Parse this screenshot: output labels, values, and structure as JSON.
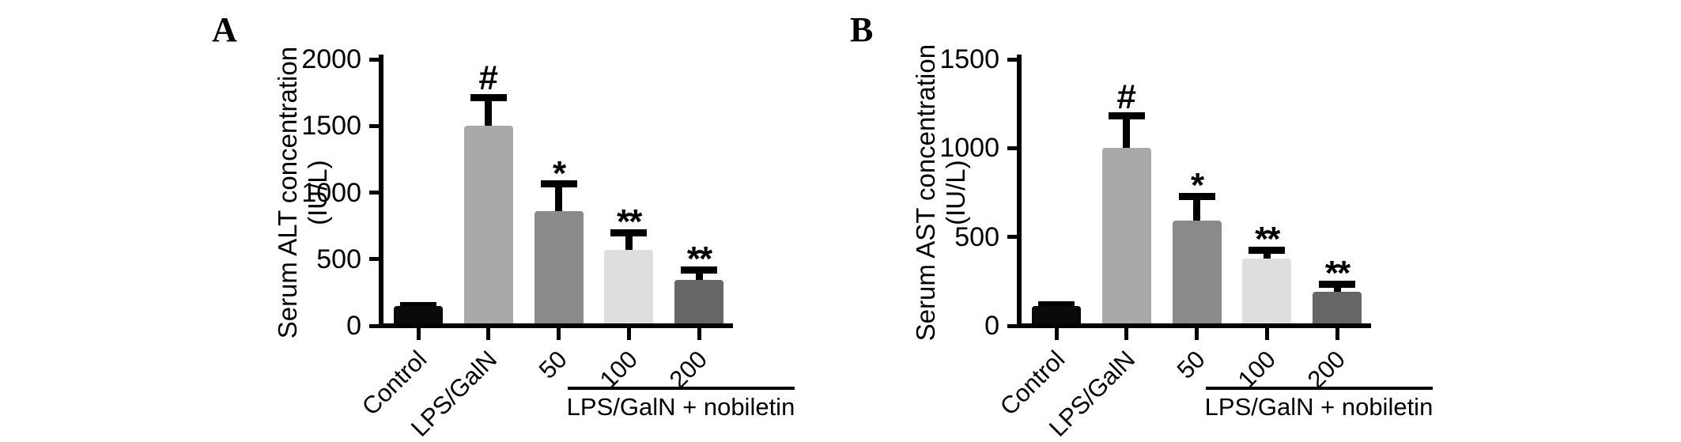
{
  "figure": {
    "background": "#ffffff",
    "axis_color": "#000000",
    "panel_count": 2
  },
  "chart_data": [
    {
      "type": "bar",
      "panel_label": "A",
      "title": "",
      "ylabel": "Serum ALT concentration (IU/L)",
      "ylabel_line1": "Serum ALT concentration",
      "ylabel_line2": "(IU/L)",
      "xlabel": "",
      "categories": [
        "Control",
        "LPS/GalN",
        "50",
        "100",
        "200"
      ],
      "values": [
        150,
        1500,
        860,
        570,
        345
      ],
      "errors": [
        30,
        240,
        230,
        155,
        100
      ],
      "significance": [
        "",
        "#",
        "*",
        "**",
        "**"
      ],
      "bar_colors": [
        "#0a0a0a",
        "#a9a9ab",
        "#8a8a8c",
        "#dedede",
        "#666668"
      ],
      "ylim": [
        0,
        2000
      ],
      "yticks": [
        0,
        500,
        1000,
        1500,
        2000
      ],
      "grid": false,
      "legend_position": "none",
      "group_annotation": {
        "label": "LPS/GalN + nobiletin",
        "applies_to": [
          "50",
          "100",
          "200"
        ]
      }
    },
    {
      "type": "bar",
      "panel_label": "B",
      "title": "",
      "ylabel": "Serum AST concentration (IU/L)",
      "ylabel_line1": "Serum AST concentration",
      "ylabel_line2": "(IU/L)",
      "xlabel": "",
      "categories": [
        "Control",
        "LPS/GalN",
        "50",
        "100",
        "200"
      ],
      "values": [
        110,
        1000,
        590,
        380,
        190
      ],
      "errors": [
        30,
        200,
        160,
        65,
        65
      ],
      "significance": [
        "",
        "#",
        "*",
        "**",
        "**"
      ],
      "bar_colors": [
        "#0a0a0a",
        "#a9a9ab",
        "#8a8a8c",
        "#dedede",
        "#666668"
      ],
      "ylim": [
        0,
        1500
      ],
      "yticks": [
        0,
        500,
        1000,
        1500
      ],
      "grid": false,
      "legend_position": "none",
      "group_annotation": {
        "label": "LPS/GalN + nobiletin",
        "applies_to": [
          "50",
          "100",
          "200"
        ]
      }
    }
  ]
}
